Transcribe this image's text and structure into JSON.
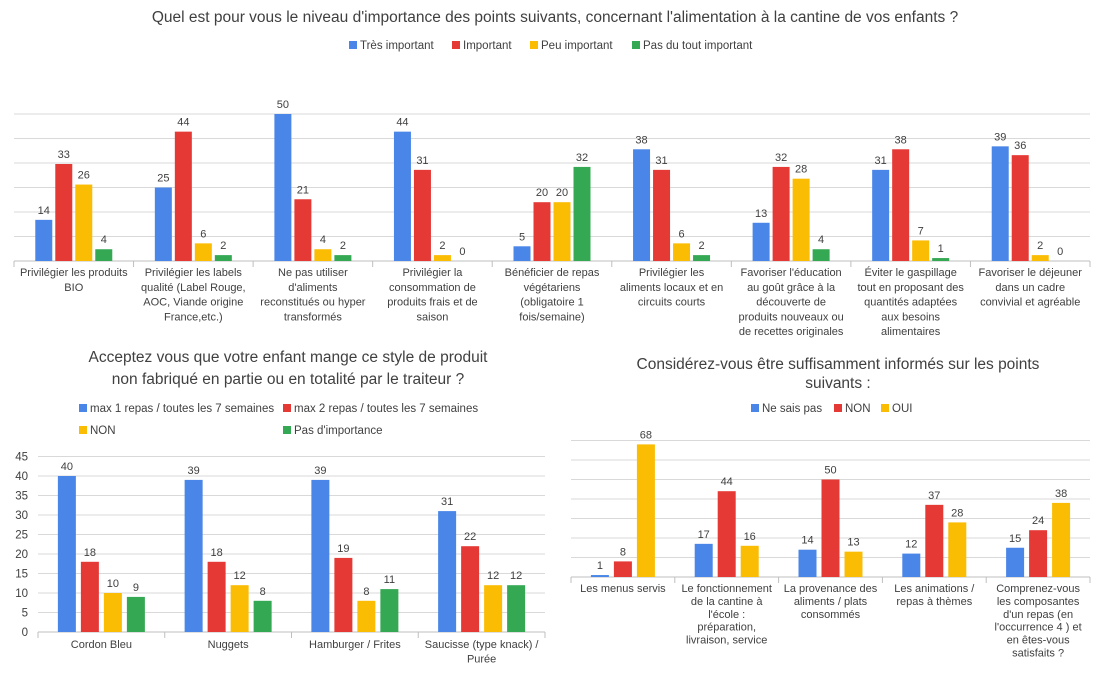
{
  "chart_data": [
    {
      "type": "bar",
      "title": "Quel est pour vous le niveau d'importance des points suivants, concernant l'alimentation à la cantine de vos enfants ?",
      "categories": [
        [
          "Privilégier les produits",
          "BIO"
        ],
        [
          "Privilégier les labels",
          "qualité (Label Rouge,",
          "AOC, Viande origine",
          "France,etc.)"
        ],
        [
          "Ne pas utiliser",
          "d'aliments",
          "reconstitués ou hyper",
          "transformés"
        ],
        [
          "Privilégier la",
          "consommation de",
          "produits frais et de",
          "saison"
        ],
        [
          "Bénéficier de repas",
          "végétariens",
          "(obligatoire 1",
          "fois/semaine)"
        ],
        [
          "Privilégier les",
          "aliments locaux et en",
          "circuits courts"
        ],
        [
          "Favoriser l'éducation",
          "au goût grâce à la",
          "découverte de",
          "produits nouveaux ou",
          "de recettes originales"
        ],
        [
          "Éviter le gaspillage",
          "tout en proposant des",
          "quantités adaptées",
          "aux besoins",
          "alimentaires"
        ],
        [
          "Favoriser le déjeuner",
          "dans un cadre",
          "convivial et agréable"
        ]
      ],
      "series": [
        {
          "name": "Très important",
          "color": "#4a86e8",
          "values": [
            14,
            25,
            50,
            44,
            5,
            38,
            13,
            31,
            39
          ]
        },
        {
          "name": "Important",
          "color": "#e53935",
          "values": [
            33,
            44,
            21,
            31,
            20,
            31,
            32,
            38,
            36
          ]
        },
        {
          "name": "Peu important",
          "color": "#fbbc04",
          "values": [
            26,
            6,
            4,
            2,
            20,
            6,
            28,
            7,
            2
          ]
        },
        {
          "name": "Pas du tout important",
          "color": "#34a853",
          "values": [
            4,
            2,
            2,
            0,
            32,
            2,
            4,
            1,
            0
          ]
        }
      ],
      "ylim": [
        0,
        50
      ],
      "grid": true,
      "legend": "top"
    },
    {
      "type": "bar",
      "title": [
        "Acceptez vous que votre enfant mange ce style de produit",
        "non fabriqué en partie ou en totalité par le traiteur ?"
      ],
      "categories": [
        [
          "Cordon Bleu"
        ],
        [
          "Nuggets"
        ],
        [
          "Hamburger / Frites"
        ],
        [
          "Saucisse (type knack) /",
          "Purée"
        ]
      ],
      "series": [
        {
          "name": "max 1 repas / toutes les 7 semaines",
          "color": "#4a86e8",
          "values": [
            40,
            39,
            39,
            31
          ]
        },
        {
          "name": "max 2 repas / toutes les 7 semaines",
          "color": "#e53935",
          "values": [
            18,
            18,
            19,
            22
          ]
        },
        {
          "name": "NON",
          "color": "#fbbc04",
          "values": [
            10,
            12,
            8,
            12
          ]
        },
        {
          "name": "Pas d'importance",
          "color": "#34a853",
          "values": [
            9,
            8,
            11,
            12
          ]
        }
      ],
      "ylim": [
        0,
        45
      ],
      "yticks": [
        "0",
        "5",
        "10",
        "15",
        "20",
        "25",
        "30",
        "35",
        "40",
        "45"
      ],
      "grid": true,
      "legend": "top"
    },
    {
      "type": "bar",
      "title": [
        "Considérez-vous être suffisamment informés sur les points",
        "suivants :"
      ],
      "categories": [
        [
          "Les menus servis"
        ],
        [
          "Le fonctionnement",
          "de la cantine à",
          "l'école :",
          "préparation,",
          "livraison, service"
        ],
        [
          "La provenance des",
          "aliments / plats",
          "consommés"
        ],
        [
          "Les animations /",
          "repas à thèmes"
        ],
        [
          "Comprenez-vous",
          "les composantes",
          "d'un repas (en",
          "l'occurrence 4 ) et",
          "en êtes-vous",
          "satisfaits ?"
        ]
      ],
      "series": [
        {
          "name": "Ne sais pas",
          "color": "#4a86e8",
          "values": [
            1,
            17,
            14,
            12,
            15
          ]
        },
        {
          "name": "NON",
          "color": "#e53935",
          "values": [
            8,
            44,
            50,
            37,
            24
          ]
        },
        {
          "name": "OUI",
          "color": "#fbbc04",
          "values": [
            68,
            16,
            13,
            28,
            38
          ]
        }
      ],
      "ylim": [
        0,
        70
      ],
      "grid": true,
      "legend": "top"
    }
  ]
}
